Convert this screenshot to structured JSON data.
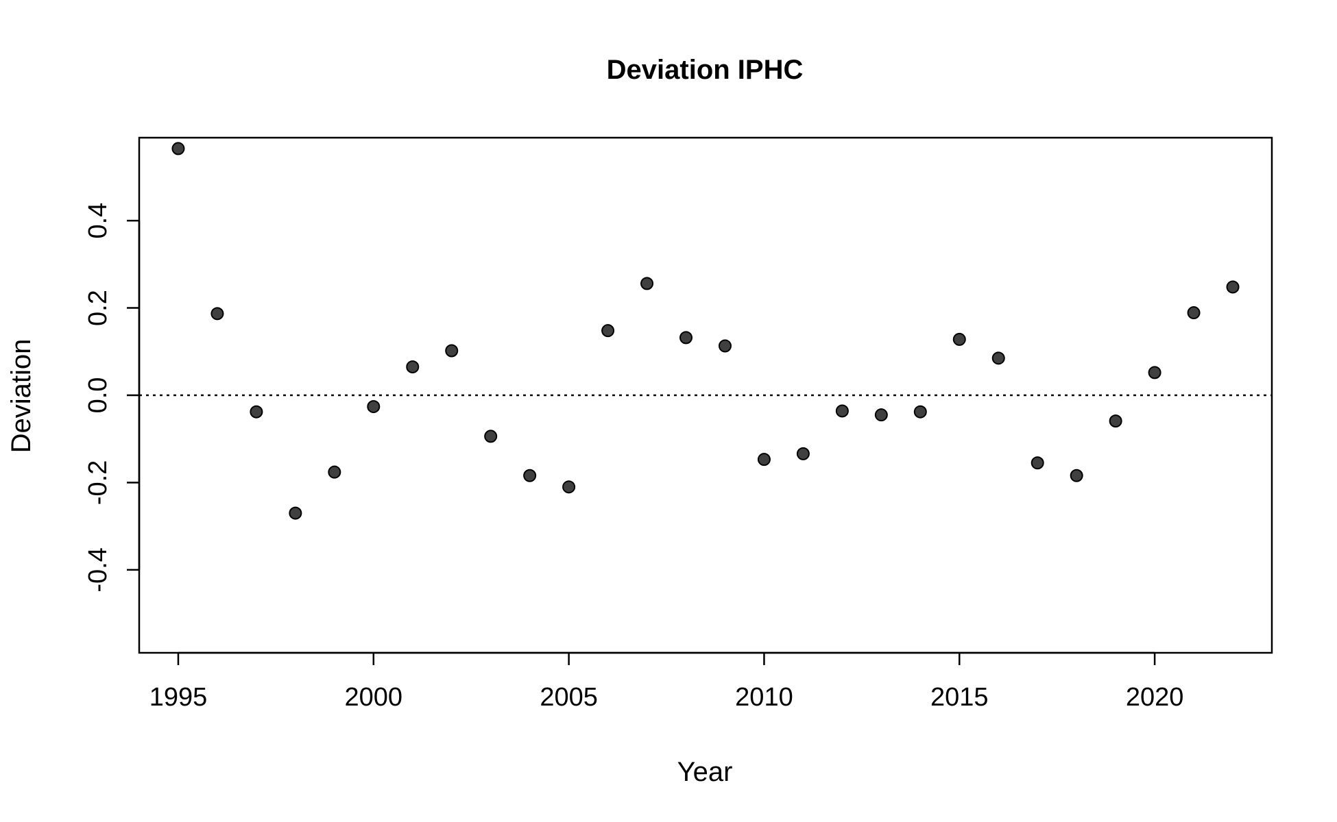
{
  "chart_data": {
    "type": "scatter",
    "title": "Deviation IPHC",
    "xlabel": "Year",
    "ylabel": "Deviation",
    "xlim": [
      1994,
      2023
    ],
    "ylim": [
      -0.59,
      0.59
    ],
    "x_ticks": [
      1995,
      2000,
      2005,
      2010,
      2015,
      2020
    ],
    "y_ticks": [
      -0.4,
      -0.2,
      0.0,
      0.2,
      0.4
    ],
    "y_tick_labels": [
      "-0.4",
      "-0.2",
      "0.0",
      "0.2",
      "0.4"
    ],
    "reference_line": {
      "y": 0.0,
      "style": "dotted"
    },
    "grid": false,
    "point_color": "#404040",
    "series": [
      {
        "x": [
          1995,
          1996,
          1997,
          1998,
          1999,
          2000,
          2001,
          2002,
          2003,
          2004,
          2005,
          2006,
          2007,
          2008,
          2009,
          2010,
          2011,
          2012,
          2013,
          2014,
          2015,
          2016,
          2017,
          2018,
          2019,
          2020,
          2021,
          2022
        ],
        "y": [
          0.565,
          0.187,
          -0.038,
          -0.27,
          -0.176,
          -0.026,
          0.065,
          0.102,
          -0.094,
          -0.184,
          -0.21,
          0.148,
          0.256,
          0.132,
          0.113,
          -0.147,
          -0.134,
          -0.036,
          -0.045,
          -0.038,
          0.128,
          0.085,
          -0.155,
          -0.184,
          -0.059,
          0.052,
          0.189,
          0.248
        ]
      }
    ]
  }
}
